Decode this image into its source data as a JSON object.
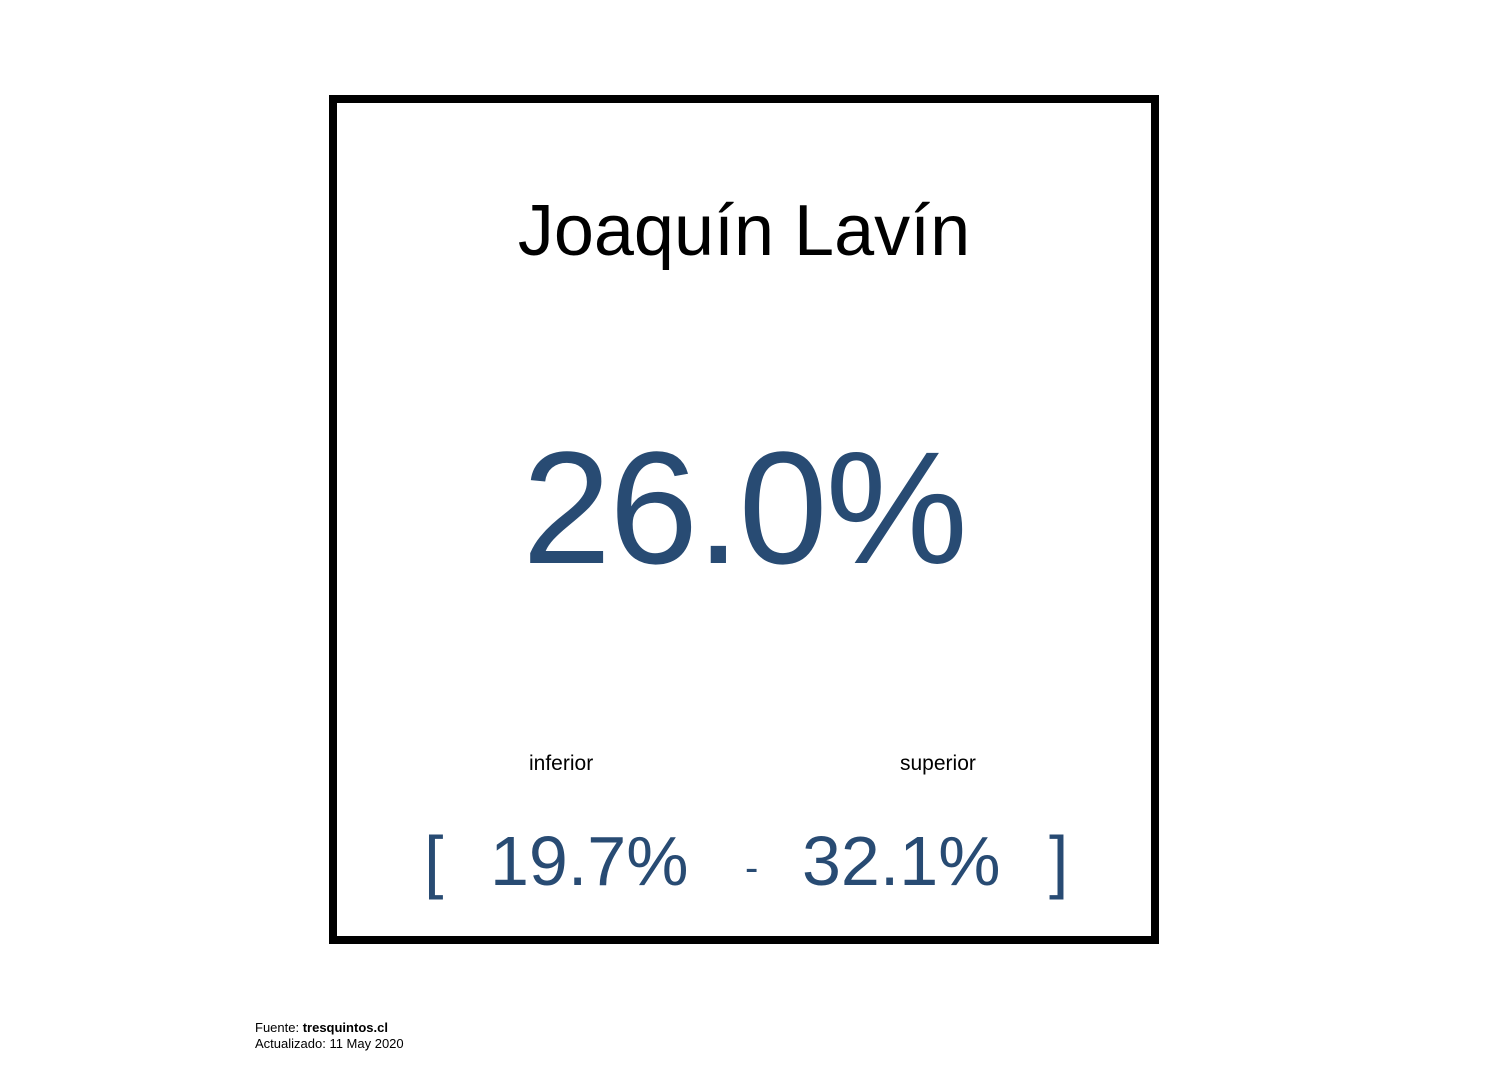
{
  "colors": {
    "accent": "#284b73",
    "text": "#000000",
    "border": "#000000",
    "background": "#ffffff"
  },
  "card": {
    "name": "Joaquín Lavín",
    "value": "26.0%",
    "lower_label": "inferior",
    "upper_label": "superior",
    "bracket_open": "[",
    "lower_value": "19.7%",
    "separator": "-",
    "upper_value": "32.1%",
    "bracket_close": "]"
  },
  "footer": {
    "source_label": "Fuente: ",
    "source_name": "tresquintos.cl",
    "updated_label": "Actualizado: ",
    "updated_date": "11 May 2020"
  }
}
